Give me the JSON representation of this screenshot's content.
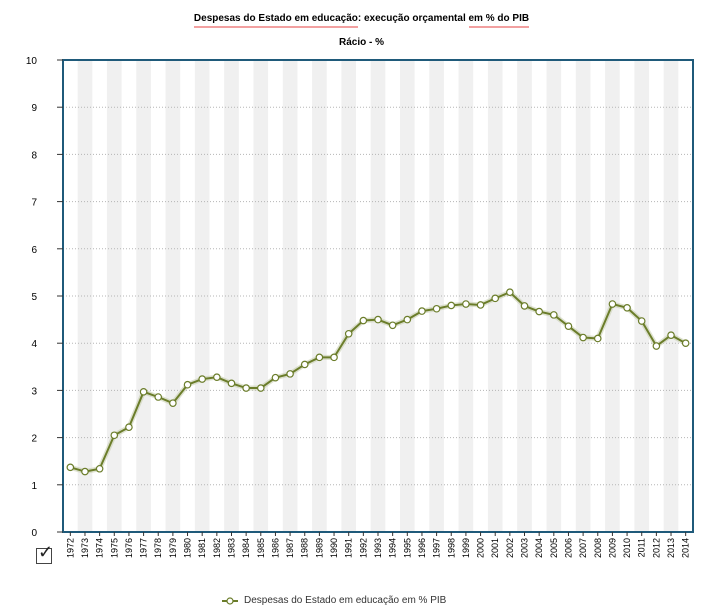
{
  "chart_data": {
    "type": "line",
    "title_part1": "Despesas do Estado em educação",
    "title_part2": ": execução orçamental ",
    "title_part3": "em % do PIB",
    "subtitle": "Rácio - %",
    "xlabel": "",
    "ylabel": "",
    "ylim": [
      0,
      10
    ],
    "yticks": [
      0,
      1,
      2,
      3,
      4,
      5,
      6,
      7,
      8,
      9,
      10
    ],
    "x": [
      "1972",
      "1973",
      "1974",
      "1975",
      "1976",
      "1977",
      "1978",
      "1979",
      "1980",
      "1981",
      "1982",
      "1983",
      "1984",
      "1985",
      "1986",
      "1987",
      "1988",
      "1989",
      "1990",
      "1991",
      "1992",
      "1993",
      "1994",
      "1995",
      "1996",
      "1997",
      "1998",
      "1999",
      "2000",
      "2001",
      "2002",
      "2003",
      "2004",
      "2005",
      "2006",
      "2007",
      "2008",
      "2009",
      "2010",
      "2011",
      "2012",
      "2013",
      "2014"
    ],
    "series": [
      {
        "name": "Despesas do Estado em educação em % PIB",
        "color": "#6b7d2a",
        "values": [
          1.37,
          1.28,
          1.34,
          2.05,
          2.22,
          2.97,
          2.86,
          2.73,
          3.12,
          3.24,
          3.28,
          3.15,
          3.05,
          3.05,
          3.27,
          3.35,
          3.55,
          3.7,
          3.7,
          4.2,
          4.48,
          4.5,
          4.38,
          4.5,
          4.68,
          4.73,
          4.8,
          4.83,
          4.81,
          4.95,
          5.08,
          4.79,
          4.67,
          4.6,
          4.36,
          4.12,
          4.1,
          4.83,
          4.75,
          4.47,
          3.94,
          4.17,
          4.0
        ]
      }
    ],
    "grid": true,
    "legend_position": "bottom"
  }
}
